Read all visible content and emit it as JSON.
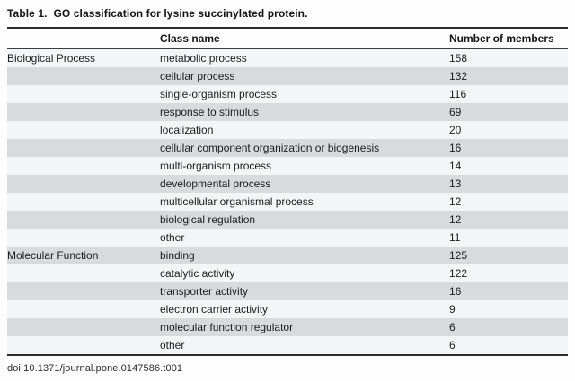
{
  "title": "Table 1.  GO classification for lysine succinylated protein.",
  "table": {
    "header": {
      "class_name": "Class name",
      "members": "Number of members"
    },
    "groups": [
      {
        "label": "Biological Process",
        "rows": [
          {
            "class_name": "metabolic process",
            "members": "158"
          },
          {
            "class_name": "cellular process",
            "members": "132"
          },
          {
            "class_name": "single-organism process",
            "members": "116"
          },
          {
            "class_name": "response to stimulus",
            "members": "69"
          },
          {
            "class_name": "localization",
            "members": "20"
          },
          {
            "class_name": "cellular component organization or biogenesis",
            "members": "16"
          },
          {
            "class_name": "multi-organism process",
            "members": "14"
          },
          {
            "class_name": "developmental process",
            "members": "13"
          },
          {
            "class_name": "multicellular organismal process",
            "members": "12"
          },
          {
            "class_name": "biological regulation",
            "members": "12"
          },
          {
            "class_name": "other",
            "members": "11"
          }
        ]
      },
      {
        "label": "Molecular Function",
        "rows": [
          {
            "class_name": "binding",
            "members": "125"
          },
          {
            "class_name": "catalytic activity",
            "members": "122"
          },
          {
            "class_name": "transporter activity",
            "members": "16"
          },
          {
            "class_name": "electron carrier activity",
            "members": "9"
          },
          {
            "class_name": "molecular function regulator",
            "members": "6"
          },
          {
            "class_name": "other",
            "members": "6"
          }
        ]
      }
    ]
  },
  "footer": {
    "doi": "doi:10.1371/journal.pone.0147586.t001"
  },
  "colors": {
    "row_alt": "#d9dadd",
    "row_base": "#f4f5f7",
    "rule_dark": "#2b2b2b",
    "text": "#1c1c1c"
  }
}
